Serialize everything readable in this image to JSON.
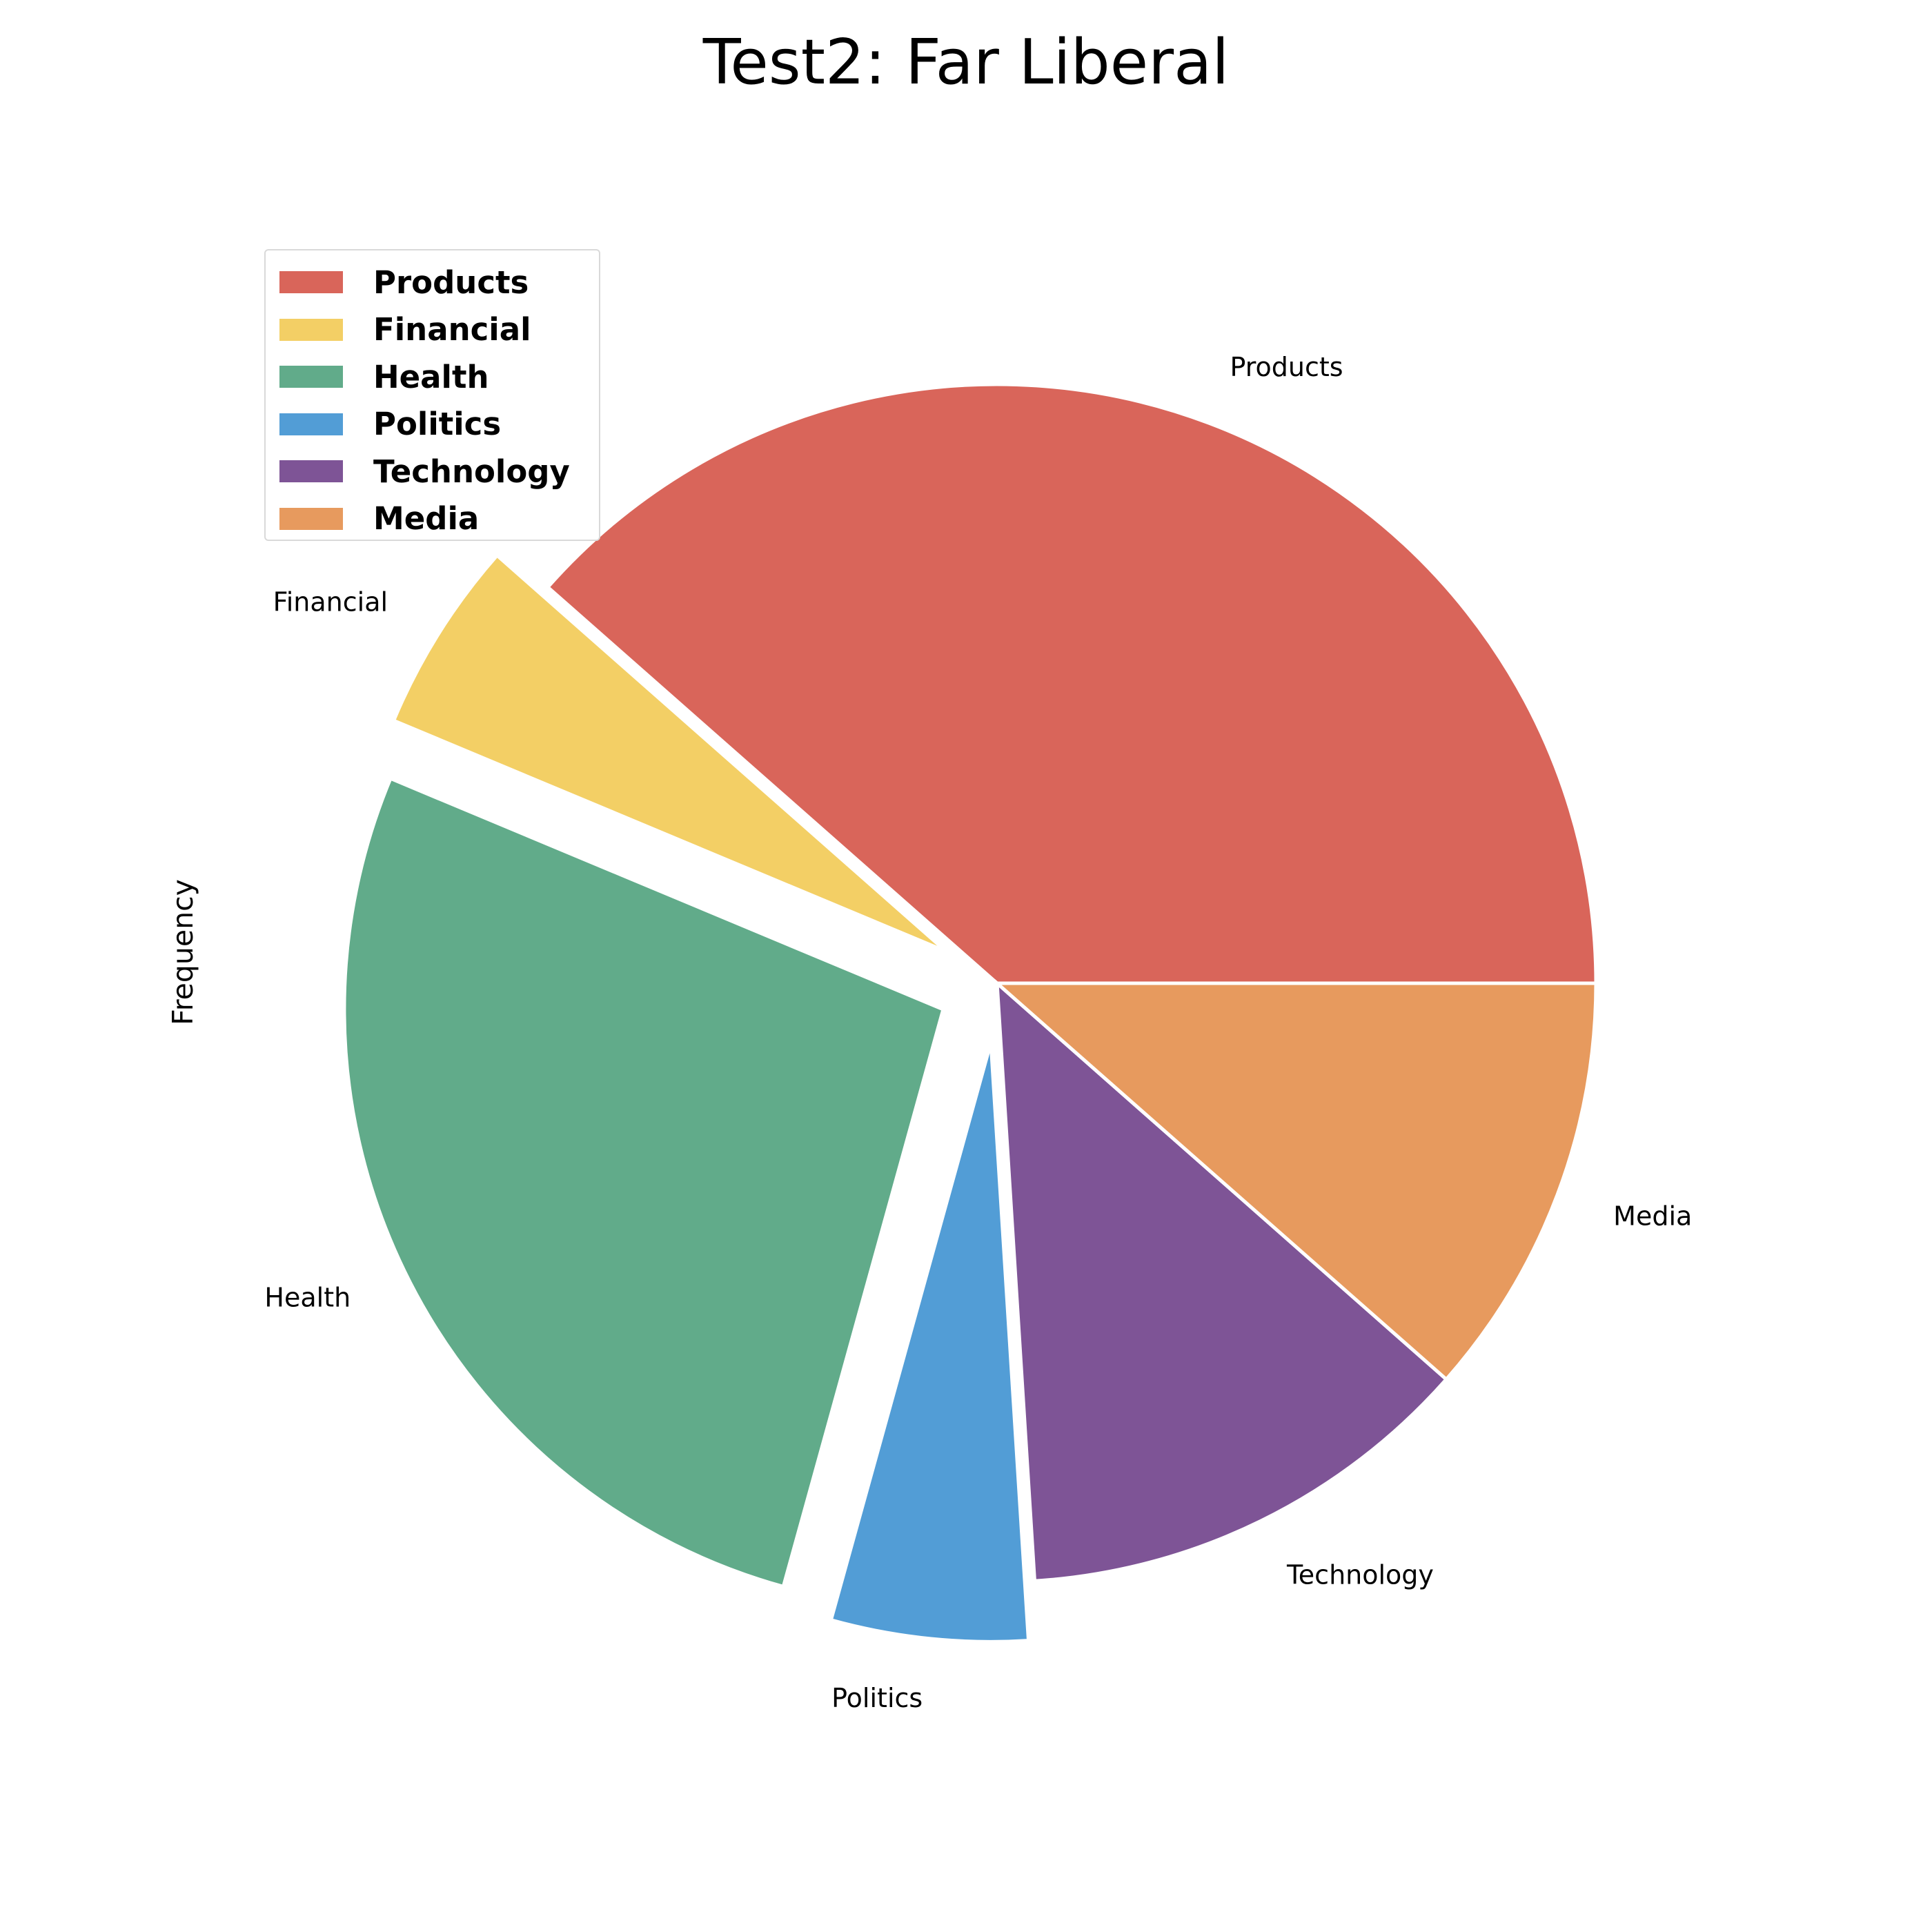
{
  "chart_data": {
    "type": "pie",
    "title": "Test2: Far Liberal",
    "ylabel": "Frequency",
    "categories": [
      "Products",
      "Financial",
      "Health",
      "Politics",
      "Technology",
      "Media"
    ],
    "values": [
      38.5,
      5.2,
      27.0,
      5.3,
      12.5,
      11.5
    ],
    "colors": [
      "#d9655a",
      "#f3cf65",
      "#61ab8a",
      "#529dd6",
      "#7e5496",
      "#e79a5e"
    ],
    "exploded": [
      false,
      true,
      true,
      true,
      false,
      false
    ],
    "start_angle_deg": 0,
    "direction": "counterclockwise",
    "legend_position": "upper-left"
  }
}
